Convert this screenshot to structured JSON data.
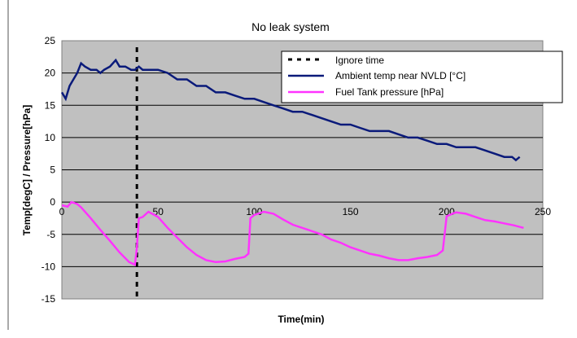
{
  "chart_data": {
    "type": "line",
    "title": "No leak system",
    "xlabel": "Time(min)",
    "ylabel": "Temp[degC] / Pressure[hPa]",
    "xlim": [
      0,
      250
    ],
    "ylim": [
      -15,
      25
    ],
    "xticks": [
      "0",
      "50",
      "100",
      "150",
      "200",
      "250"
    ],
    "yticks": [
      "25",
      "20",
      "15",
      "10",
      "5",
      "0",
      "-5",
      "-10",
      "-15"
    ],
    "grid": "horizontal",
    "legend_position": "top-right",
    "colors": {
      "plot_background": "#c0c0c0",
      "ambient": "#0a1a7a",
      "pressure": "#ff33ff",
      "ignore": "#000000"
    },
    "ignore_time_x": 39,
    "series": [
      {
        "name": "Ambient temp near NVLD [°C]",
        "x": [
          0,
          2,
          4,
          6,
          8,
          10,
          12,
          15,
          18,
          20,
          22,
          25,
          28,
          30,
          33,
          36,
          38,
          40,
          42,
          45,
          48,
          50,
          55,
          60,
          65,
          70,
          75,
          80,
          85,
          90,
          95,
          100,
          105,
          110,
          115,
          120,
          125,
          130,
          135,
          140,
          145,
          150,
          155,
          160,
          165,
          170,
          175,
          180,
          185,
          190,
          195,
          200,
          205,
          210,
          215,
          220,
          225,
          230,
          234,
          236,
          238
        ],
        "values": [
          17,
          16,
          18,
          19,
          20,
          21.5,
          21,
          20.5,
          20.5,
          20,
          20.5,
          21,
          22,
          21,
          21,
          20.5,
          20.5,
          21,
          20.5,
          20.5,
          20.5,
          20.5,
          20,
          19,
          19,
          18,
          18,
          17,
          17,
          16.5,
          16,
          16,
          15.5,
          15,
          14.5,
          14,
          14,
          13.5,
          13,
          12.5,
          12,
          12,
          11.5,
          11,
          11,
          11,
          10.5,
          10,
          10,
          9.5,
          9,
          9,
          8.5,
          8.5,
          8.5,
          8,
          7.5,
          7,
          7,
          6.5,
          7
        ]
      },
      {
        "name": "Fuel Tank pressure [hPa]",
        "x": [
          0,
          3,
          5,
          8,
          10,
          15,
          20,
          25,
          30,
          35,
          38,
          39,
          40,
          42,
          45,
          50,
          55,
          60,
          65,
          70,
          75,
          80,
          85,
          90,
          95,
          97,
          98,
          100,
          105,
          110,
          115,
          120,
          125,
          130,
          135,
          140,
          145,
          150,
          155,
          160,
          165,
          170,
          175,
          180,
          185,
          190,
          195,
          198,
          200,
          203,
          205,
          210,
          215,
          220,
          225,
          230,
          235,
          240
        ],
        "values": [
          -0.5,
          -0.7,
          0,
          -0.3,
          -0.8,
          -2.5,
          -4.3,
          -6,
          -7.8,
          -9.3,
          -9.7,
          -7,
          -2.5,
          -2.3,
          -1.5,
          -2.3,
          -4,
          -5.5,
          -7,
          -8.2,
          -9,
          -9.3,
          -9.2,
          -8.8,
          -8.5,
          -8,
          -2.5,
          -2,
          -1.5,
          -1.8,
          -2.7,
          -3.5,
          -4,
          -4.5,
          -5,
          -5.8,
          -6.3,
          -7,
          -7.5,
          -8,
          -8.3,
          -8.7,
          -9,
          -9,
          -8.7,
          -8.5,
          -8.2,
          -7.5,
          -2.2,
          -1.8,
          -1.6,
          -1.8,
          -2.3,
          -2.8,
          -3,
          -3.3,
          -3.6,
          -4
        ]
      }
    ],
    "legend": {
      "ignore_label": "Ignore time",
      "ambient_label": "Ambient temp near NVLD [°C]",
      "pressure_label": "Fuel Tank pressure [hPa]"
    }
  }
}
